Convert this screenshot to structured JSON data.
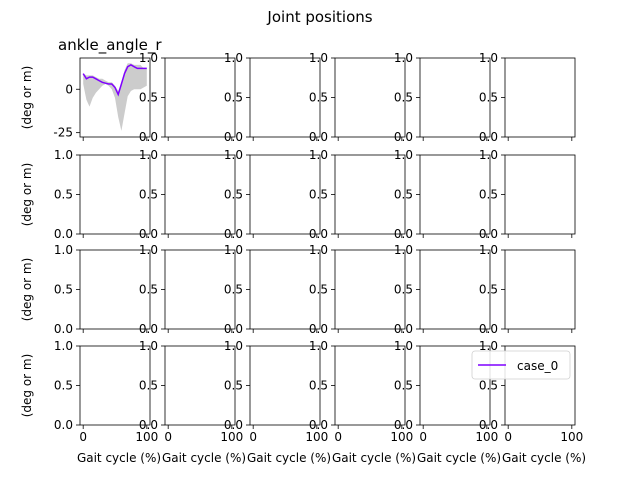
{
  "figure": {
    "suptitle": "Joint positions",
    "ylabel": "(deg or m)",
    "xlabel": "Gait cycle (%)",
    "default_yticks": [
      "0.0",
      "0.5",
      "1.0"
    ],
    "default_ylim": [
      0,
      1
    ],
    "xlim": [
      -5,
      105
    ],
    "xticks": [
      "0",
      "100"
    ]
  },
  "legend": {
    "placement": "grid row 4, column 6",
    "entries": [
      {
        "label": "case_0",
        "color": "#7f00ff"
      }
    ]
  },
  "chart_data": {
    "type": "line",
    "title": "ankle_angle_r",
    "xlabel": "",
    "ylabel": "(deg or m)",
    "xlim": [
      -5,
      105
    ],
    "ylim": [
      -27.5,
      18
    ],
    "yticks": [
      -25,
      0
    ],
    "xticks": [
      0,
      100
    ],
    "grid": false,
    "band": {
      "name": "",
      "color": "#cccccc",
      "x": [
        0,
        5,
        10,
        15,
        20,
        25,
        30,
        35,
        40,
        45,
        50,
        55,
        60,
        65,
        70,
        75,
        80,
        85,
        90,
        95,
        100
      ],
      "upper": [
        9,
        8,
        8,
        8,
        7,
        6,
        6,
        5,
        4,
        4,
        2,
        -1,
        3,
        11,
        15,
        15,
        14,
        14,
        14,
        12,
        12
      ],
      "lower": [
        3,
        -6,
        -10,
        -5,
        -2,
        0,
        2,
        3,
        2,
        0,
        -5,
        -16,
        -24,
        -14,
        -4,
        -1,
        0,
        0,
        0,
        1,
        2
      ]
    },
    "series": [
      {
        "name": "case_0",
        "color": "#7f00ff",
        "x": [
          0,
          5,
          10,
          15,
          20,
          25,
          30,
          35,
          40,
          45,
          50,
          55,
          60,
          65,
          70,
          75,
          80,
          85,
          90,
          95,
          100
        ],
        "values": [
          9,
          6,
          7,
          7,
          6,
          5,
          4,
          3.5,
          3,
          3,
          1,
          -3,
          3,
          9,
          13,
          14,
          13,
          12,
          12,
          12,
          12
        ]
      }
    ]
  }
}
